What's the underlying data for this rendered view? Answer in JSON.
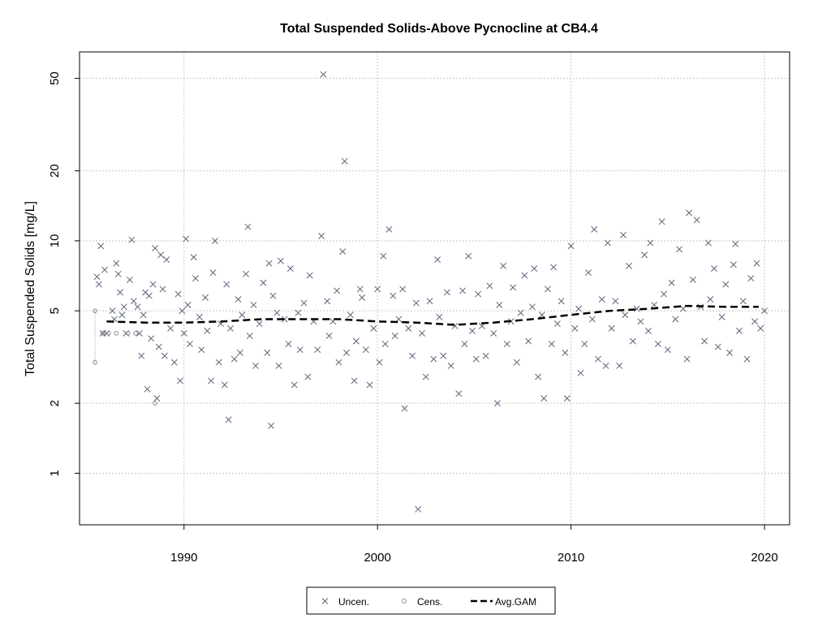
{
  "chart_data": {
    "type": "scatter",
    "title": "Total Suspended Solids-Above Pycnocline at CB4.4",
    "ylabel": "Total Suspended Solids [mg/L]",
    "xlabel": "",
    "y_scale": "log",
    "xlim": [
      1984.6,
      2021.3
    ],
    "ylim": [
      0.6,
      65
    ],
    "x_ticks": [
      1990,
      2000,
      2010,
      2020
    ],
    "y_ticks": [
      1,
      2,
      5,
      10,
      20,
      50
    ],
    "grid": true,
    "legend_position": "bottom",
    "legend": [
      {
        "label": "Uncen.",
        "symbol": "x"
      },
      {
        "label": "Cens.",
        "symbol": "circle"
      },
      {
        "label": "Avg.GAM",
        "symbol": "dashed-line"
      }
    ],
    "colors": {
      "uncensored": "#5a6478",
      "censored": "#8a8a8a",
      "gam": "#000000",
      "grid": "#c8c8c8"
    },
    "series": [
      {
        "name": "Uncen.",
        "points": [
          [
            1985.5,
            7.0
          ],
          [
            1985.6,
            6.5
          ],
          [
            1985.7,
            9.5
          ],
          [
            1985.8,
            4.0
          ],
          [
            1985.9,
            7.5
          ],
          [
            1986.0,
            4.0
          ],
          [
            1986.3,
            5.0
          ],
          [
            1986.4,
            4.6
          ],
          [
            1986.5,
            8.0
          ],
          [
            1986.6,
            7.2
          ],
          [
            1986.7,
            6.0
          ],
          [
            1986.8,
            4.8
          ],
          [
            1986.9,
            5.2
          ],
          [
            1987.0,
            4.0
          ],
          [
            1987.2,
            6.8
          ],
          [
            1987.3,
            10.1
          ],
          [
            1987.4,
            5.5
          ],
          [
            1987.6,
            5.2
          ],
          [
            1987.7,
            4.0
          ],
          [
            1987.8,
            3.2
          ],
          [
            1987.9,
            4.8
          ],
          [
            1988.0,
            6.0
          ],
          [
            1988.1,
            2.3
          ],
          [
            1988.2,
            5.8
          ],
          [
            1988.3,
            3.8
          ],
          [
            1988.4,
            6.5
          ],
          [
            1988.5,
            9.3
          ],
          [
            1988.6,
            2.1
          ],
          [
            1988.7,
            3.5
          ],
          [
            1988.8,
            8.7
          ],
          [
            1988.9,
            6.2
          ],
          [
            1989.0,
            3.2
          ],
          [
            1989.1,
            8.3
          ],
          [
            1989.3,
            4.2
          ],
          [
            1989.5,
            3.0
          ],
          [
            1989.7,
            5.9
          ],
          [
            1989.8,
            2.5
          ],
          [
            1989.9,
            5.0
          ],
          [
            1990.0,
            4.0
          ],
          [
            1990.1,
            10.2
          ],
          [
            1990.2,
            5.3
          ],
          [
            1990.3,
            3.6
          ],
          [
            1990.5,
            8.5
          ],
          [
            1990.6,
            6.9
          ],
          [
            1990.8,
            4.7
          ],
          [
            1990.9,
            3.4
          ],
          [
            1991.1,
            5.7
          ],
          [
            1991.2,
            4.1
          ],
          [
            1991.4,
            2.5
          ],
          [
            1991.5,
            7.3
          ],
          [
            1991.6,
            10.0
          ],
          [
            1991.8,
            3.0
          ],
          [
            1991.9,
            4.4
          ],
          [
            1992.1,
            2.4
          ],
          [
            1992.2,
            6.5
          ],
          [
            1992.3,
            1.7
          ],
          [
            1992.4,
            4.2
          ],
          [
            1992.6,
            3.1
          ],
          [
            1992.8,
            5.6
          ],
          [
            1992.9,
            3.3
          ],
          [
            1993.0,
            4.8
          ],
          [
            1993.2,
            7.2
          ],
          [
            1993.3,
            11.5
          ],
          [
            1993.4,
            3.9
          ],
          [
            1993.6,
            5.3
          ],
          [
            1993.7,
            2.9
          ],
          [
            1993.9,
            4.4
          ],
          [
            1994.1,
            6.6
          ],
          [
            1994.3,
            3.3
          ],
          [
            1994.4,
            8.0
          ],
          [
            1994.5,
            1.6
          ],
          [
            1994.6,
            5.8
          ],
          [
            1994.8,
            4.9
          ],
          [
            1994.9,
            2.9
          ],
          [
            1995.0,
            8.2
          ],
          [
            1995.2,
            4.6
          ],
          [
            1995.4,
            3.6
          ],
          [
            1995.5,
            7.6
          ],
          [
            1995.7,
            2.4
          ],
          [
            1995.9,
            4.9
          ],
          [
            1996.0,
            3.4
          ],
          [
            1996.2,
            5.4
          ],
          [
            1996.4,
            2.6
          ],
          [
            1996.5,
            7.1
          ],
          [
            1996.7,
            4.5
          ],
          [
            1996.9,
            3.4
          ],
          [
            1997.1,
            10.5
          ],
          [
            1997.2,
            52.0
          ],
          [
            1997.4,
            5.5
          ],
          [
            1997.5,
            3.9
          ],
          [
            1997.7,
            4.5
          ],
          [
            1997.9,
            6.1
          ],
          [
            1998.0,
            3.0
          ],
          [
            1998.2,
            9.0
          ],
          [
            1998.3,
            22.0
          ],
          [
            1998.4,
            3.3
          ],
          [
            1998.6,
            4.8
          ],
          [
            1998.8,
            2.5
          ],
          [
            1998.9,
            3.7
          ],
          [
            1999.1,
            6.2
          ],
          [
            1999.2,
            5.7
          ],
          [
            1999.4,
            3.4
          ],
          [
            1999.6,
            2.4
          ],
          [
            1999.8,
            4.2
          ],
          [
            2000.0,
            6.2
          ],
          [
            2000.1,
            3.0
          ],
          [
            2000.3,
            8.6
          ],
          [
            2000.4,
            3.6
          ],
          [
            2000.6,
            11.2
          ],
          [
            2000.8,
            5.8
          ],
          [
            2000.9,
            3.9
          ],
          [
            2001.1,
            4.6
          ],
          [
            2001.3,
            6.2
          ],
          [
            2001.4,
            1.9
          ],
          [
            2001.6,
            4.2
          ],
          [
            2001.8,
            3.2
          ],
          [
            2002.0,
            5.4
          ],
          [
            2002.1,
            0.7
          ],
          [
            2002.3,
            4.0
          ],
          [
            2002.5,
            2.6
          ],
          [
            2002.7,
            5.5
          ],
          [
            2002.9,
            3.1
          ],
          [
            2003.1,
            8.3
          ],
          [
            2003.2,
            4.7
          ],
          [
            2003.4,
            3.2
          ],
          [
            2003.6,
            6.0
          ],
          [
            2003.8,
            2.9
          ],
          [
            2004.0,
            4.3
          ],
          [
            2004.2,
            2.2
          ],
          [
            2004.4,
            6.1
          ],
          [
            2004.5,
            3.6
          ],
          [
            2004.7,
            8.6
          ],
          [
            2004.9,
            4.1
          ],
          [
            2005.1,
            3.1
          ],
          [
            2005.2,
            5.9
          ],
          [
            2005.4,
            4.3
          ],
          [
            2005.6,
            3.2
          ],
          [
            2005.8,
            6.4
          ],
          [
            2006.0,
            4.0
          ],
          [
            2006.2,
            2.0
          ],
          [
            2006.3,
            5.3
          ],
          [
            2006.5,
            7.8
          ],
          [
            2006.7,
            3.6
          ],
          [
            2006.9,
            4.5
          ],
          [
            2007.0,
            6.3
          ],
          [
            2007.2,
            3.0
          ],
          [
            2007.4,
            4.9
          ],
          [
            2007.6,
            7.1
          ],
          [
            2007.8,
            3.7
          ],
          [
            2008.0,
            5.2
          ],
          [
            2008.1,
            7.6
          ],
          [
            2008.3,
            2.6
          ],
          [
            2008.5,
            4.8
          ],
          [
            2008.6,
            2.1
          ],
          [
            2008.8,
            6.2
          ],
          [
            2009.0,
            3.6
          ],
          [
            2009.1,
            7.7
          ],
          [
            2009.3,
            4.4
          ],
          [
            2009.5,
            5.5
          ],
          [
            2009.7,
            3.3
          ],
          [
            2009.8,
            2.1
          ],
          [
            2010.0,
            9.5
          ],
          [
            2010.2,
            4.2
          ],
          [
            2010.4,
            5.1
          ],
          [
            2010.5,
            2.7
          ],
          [
            2010.7,
            3.6
          ],
          [
            2010.9,
            7.3
          ],
          [
            2011.1,
            4.6
          ],
          [
            2011.2,
            11.2
          ],
          [
            2011.4,
            3.1
          ],
          [
            2011.6,
            5.6
          ],
          [
            2011.8,
            2.9
          ],
          [
            2011.9,
            9.8
          ],
          [
            2012.1,
            4.2
          ],
          [
            2012.3,
            5.5
          ],
          [
            2012.5,
            2.9
          ],
          [
            2012.7,
            10.6
          ],
          [
            2012.8,
            4.8
          ],
          [
            2013.0,
            7.8
          ],
          [
            2013.2,
            3.7
          ],
          [
            2013.4,
            5.1
          ],
          [
            2013.6,
            4.5
          ],
          [
            2013.8,
            8.7
          ],
          [
            2014.0,
            4.1
          ],
          [
            2014.1,
            9.8
          ],
          [
            2014.3,
            5.3
          ],
          [
            2014.5,
            3.6
          ],
          [
            2014.7,
            12.1
          ],
          [
            2014.8,
            5.9
          ],
          [
            2015.0,
            3.4
          ],
          [
            2015.2,
            6.6
          ],
          [
            2015.4,
            4.6
          ],
          [
            2015.6,
            9.2
          ],
          [
            2015.8,
            5.1
          ],
          [
            2016.0,
            3.1
          ],
          [
            2016.1,
            13.2
          ],
          [
            2016.3,
            6.8
          ],
          [
            2016.5,
            12.3
          ],
          [
            2016.7,
            5.2
          ],
          [
            2016.9,
            3.7
          ],
          [
            2017.1,
            9.8
          ],
          [
            2017.2,
            5.6
          ],
          [
            2017.4,
            7.6
          ],
          [
            2017.6,
            3.5
          ],
          [
            2017.8,
            4.7
          ],
          [
            2018.0,
            6.5
          ],
          [
            2018.2,
            3.3
          ],
          [
            2018.4,
            7.9
          ],
          [
            2018.5,
            9.7
          ],
          [
            2018.7,
            4.1
          ],
          [
            2018.9,
            5.5
          ],
          [
            2019.1,
            3.1
          ],
          [
            2019.3,
            6.9
          ],
          [
            2019.5,
            4.5
          ],
          [
            2019.6,
            8.0
          ],
          [
            2019.8,
            4.2
          ],
          [
            2020.0,
            5.0
          ]
        ]
      },
      {
        "name": "Cens.",
        "points": [
          [
            1985.4,
            3.0
          ],
          [
            1985.4,
            5.0
          ],
          [
            1985.8,
            4.0
          ],
          [
            1986.1,
            4.0
          ],
          [
            1986.5,
            4.0
          ],
          [
            1987.1,
            4.0
          ],
          [
            1987.5,
            4.0
          ],
          [
            1988.5,
            2.0
          ]
        ]
      },
      {
        "name": "Avg.GAM",
        "points": [
          [
            1986.0,
            4.5
          ],
          [
            1988.0,
            4.45
          ],
          [
            1990.0,
            4.45
          ],
          [
            1992.0,
            4.5
          ],
          [
            1994.0,
            4.6
          ],
          [
            1996.0,
            4.6
          ],
          [
            1998.0,
            4.6
          ],
          [
            2000.0,
            4.5
          ],
          [
            2002.0,
            4.45
          ],
          [
            2004.0,
            4.35
          ],
          [
            2006.0,
            4.45
          ],
          [
            2008.0,
            4.6
          ],
          [
            2010.0,
            4.8
          ],
          [
            2012.0,
            5.0
          ],
          [
            2014.0,
            5.1
          ],
          [
            2016.0,
            5.25
          ],
          [
            2018.0,
            5.2
          ],
          [
            2019.7,
            5.2
          ]
        ]
      }
    ]
  }
}
